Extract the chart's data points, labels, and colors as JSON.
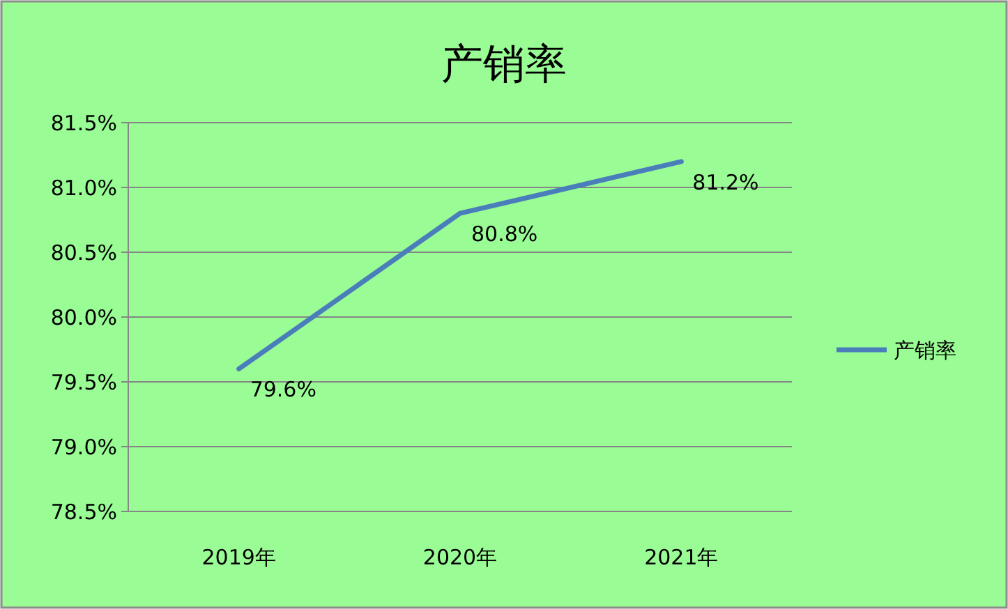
{
  "chart_data": {
    "type": "line",
    "title": "产销率",
    "categories": [
      "2019年",
      "2020年",
      "2021年"
    ],
    "series": [
      {
        "name": "产销率",
        "color": "#4a7ebb",
        "values": [
          79.6,
          80.8,
          81.2
        ],
        "value_labels": [
          "79.6%",
          "80.8%",
          "81.2%"
        ]
      }
    ],
    "ylim": [
      78.5,
      81.5
    ],
    "yticks": [
      {
        "value": 78.5,
        "label": "78.5%"
      },
      {
        "value": 79.0,
        "label": "79.0%"
      },
      {
        "value": 79.5,
        "label": "79.5%"
      },
      {
        "value": 80.0,
        "label": "80.0%"
      },
      {
        "value": 80.5,
        "label": "80.5%"
      },
      {
        "value": 81.0,
        "label": "81.0%"
      },
      {
        "value": 81.5,
        "label": "81.5%"
      }
    ],
    "grid": "y",
    "legend": "right"
  }
}
